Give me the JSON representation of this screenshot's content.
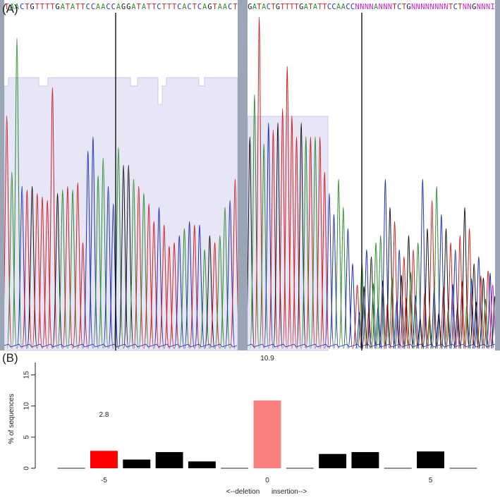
{
  "panel_labels": {
    "a": "(A)",
    "b": "(B)"
  },
  "colors": {
    "A": "#2e8b2e",
    "C": "#1f2fb3",
    "G": "#111111",
    "T": "#d02020",
    "N": "#cc22cc",
    "shade": "#e6e6f7",
    "frame": "#9aa6b6"
  },
  "chromatograms": {
    "left": {
      "sequence": "TAACTGTTTTGATATTCCAACCAGGATATTCTTTCACTCAGTAACT"
    },
    "right": {
      "sequence": "GATACTGTTTTGATATTCCAACCNNNNANNNTCTGNNNNNNNNTCTNNGNNNI"
    }
  },
  "chart_data": {
    "type": "bar",
    "title": "",
    "xlabel": "<--deletion      insertion-->",
    "ylabel": "% of sequences",
    "ylim": [
      0,
      17
    ],
    "yticks": [
      0,
      5,
      10,
      15
    ],
    "xticks": [
      -5,
      0,
      5
    ],
    "x": [
      -6,
      -5,
      -4,
      -3,
      -2,
      -1,
      0,
      1,
      2,
      3,
      4,
      5,
      6
    ],
    "values": [
      0,
      2.8,
      1.4,
      2.6,
      1.1,
      0,
      10.9,
      0,
      2.3,
      2.6,
      0,
      2.7,
      0
    ],
    "bar_colors": [
      "#000000",
      "#ff0000",
      "#000000",
      "#000000",
      "#000000",
      "#000000",
      "#fa8080",
      "#000000",
      "#000000",
      "#000000",
      "#000000",
      "#000000",
      "#000000"
    ],
    "data_labels": [
      {
        "x": -5,
        "text": "2.8"
      },
      {
        "x": 0,
        "text": "10.9"
      }
    ]
  }
}
